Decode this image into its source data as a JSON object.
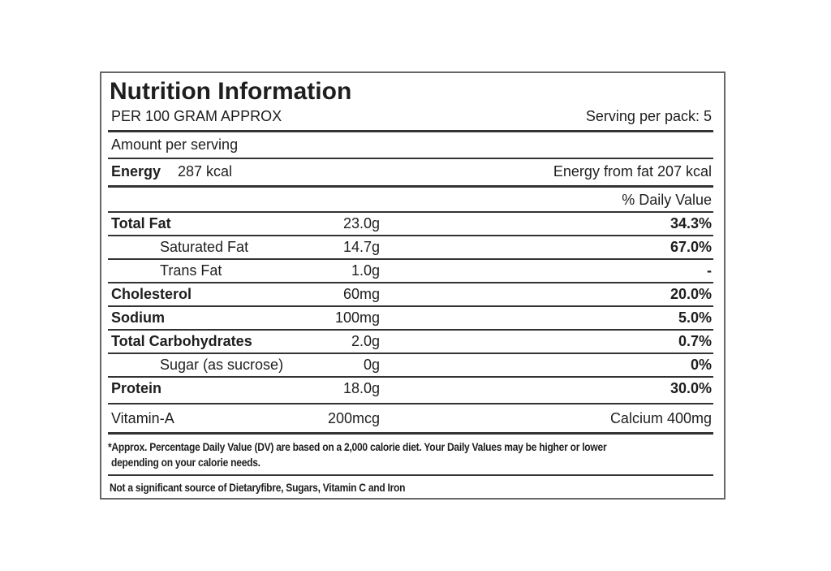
{
  "header": {
    "title": "Nutrition Information",
    "basis": "PER 100 GRAM APPROX",
    "servings": "Serving per pack: 5"
  },
  "amount_label": "Amount per serving",
  "energy": {
    "label": "Energy",
    "value": "287 kcal",
    "from_fat": "Energy from fat 207 kcal"
  },
  "dv_header": "% Daily Value",
  "nutrients": [
    {
      "name": "Total Fat",
      "amount": "23.0g",
      "dv": "34.3%",
      "bold": true,
      "indent": false
    },
    {
      "name": "Saturated Fat",
      "amount": "14.7g",
      "dv": "67.0%",
      "bold": false,
      "indent": true
    },
    {
      "name": "Trans Fat",
      "amount": "1.0g",
      "dv": "-",
      "bold": false,
      "indent": true
    },
    {
      "name": "Cholesterol",
      "amount": "60mg",
      "dv": "20.0%",
      "bold": true,
      "indent": false
    },
    {
      "name": "Sodium",
      "amount": "100mg",
      "dv": "5.0%",
      "bold": true,
      "indent": false
    },
    {
      "name": "Total Carbohydrates",
      "amount": "2.0g",
      "dv": "0.7%",
      "bold": true,
      "indent": false
    },
    {
      "name": "Sugar (as sucrose)",
      "amount": "0g",
      "dv": "0%",
      "bold": false,
      "indent": true
    },
    {
      "name": "Protein",
      "amount": "18.0g",
      "dv": "30.0%",
      "bold": true,
      "indent": false
    }
  ],
  "minerals": {
    "name": "Vitamin-A",
    "amount": "200mcg",
    "other": "Calcium 400mg"
  },
  "footnote": [
    "*Approx. Percentage Daily Value (DV) are based on a 2,000 calorie diet. Your Daily Values may be higher or lower",
    "depending on your calorie needs."
  ],
  "disclaimer": "Not a significant source of Dietaryfibre, Sugars, Vitamin C and Iron"
}
